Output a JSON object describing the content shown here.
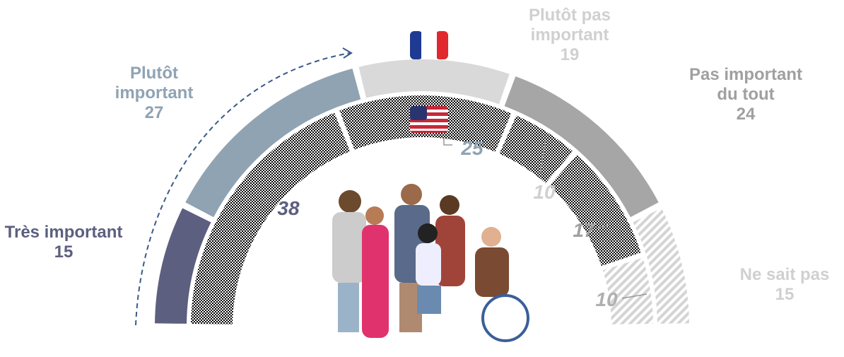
{
  "chart_data": {
    "type": "semidonut",
    "categories": [
      "Très important",
      "Plutôt important",
      "Plutôt pas important",
      "Pas important du tout",
      "Ne sait pas"
    ],
    "series": [
      {
        "colors": [
          "#5c5f80",
          "#8fa3b3",
          "#d9d9d9",
          "#a6a6a6",
          "#d4d4d4"
        ],
        "values": [
          15,
          27,
          19,
          24,
          15
        ]
      },
      {
        "colors": [
          "#5c5f80",
          "#8fa3b3",
          "#c9c9c9",
          "#a6a6a6",
          "#d4d4d4"
        ],
        "values": [
          38,
          25,
          10,
          17,
          10
        ]
      }
    ]
  }
}
